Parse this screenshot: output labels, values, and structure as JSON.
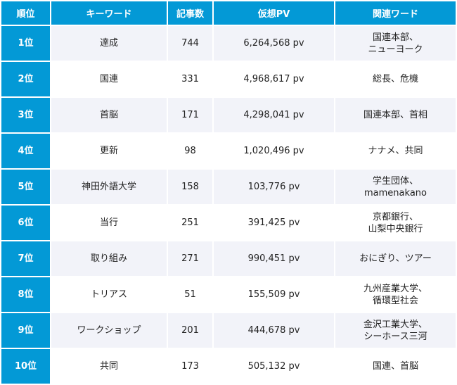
{
  "headers": [
    "順位",
    "キーワード",
    "記事数",
    "仮想PV",
    "関連ワード"
  ],
  "rows": [
    {
      "rank": "1位",
      "keyword": "達成",
      "articles": "744",
      "pv": "6,264,568 pv",
      "related": [
        "国連本部、",
        "ニューヨーク"
      ]
    },
    {
      "rank": "2位",
      "keyword": "国連",
      "articles": "331",
      "pv": "4,968,617 pv",
      "related": [
        "総長、危機"
      ]
    },
    {
      "rank": "3位",
      "keyword": "首脳",
      "articles": "171",
      "pv": "4,298,041 pv",
      "related": [
        "国連本部、首相"
      ]
    },
    {
      "rank": "4位",
      "keyword": "更新",
      "articles": "98",
      "pv": "1,020,496 pv",
      "related": [
        "ナナメ、共同"
      ]
    },
    {
      "rank": "5位",
      "keyword": "神田外語大学",
      "articles": "158",
      "pv": "103,776 pv",
      "related": [
        "学生団体、",
        "mamenakano"
      ]
    },
    {
      "rank": "6位",
      "keyword": "当行",
      "articles": "251",
      "pv": "391,425 pv",
      "related": [
        "京都銀行、",
        "山梨中央銀行"
      ]
    },
    {
      "rank": "7位",
      "keyword": "取り組み",
      "articles": "271",
      "pv": "990,451 pv",
      "related": [
        "おにぎり、ツアー"
      ]
    },
    {
      "rank": "8位",
      "keyword": "トリアス",
      "articles": "51",
      "pv": "155,509 pv",
      "related": [
        "九州産業大学、",
        "循環型社会"
      ]
    },
    {
      "rank": "9位",
      "keyword": "ワークショップ",
      "articles": "201",
      "pv": "444,678 pv",
      "related": [
        "金沢工業大学、",
        "シーホース三河"
      ]
    },
    {
      "rank": "10位",
      "keyword": "共同",
      "articles": "173",
      "pv": "505,132 pv",
      "related": [
        "国連、首脳"
      ]
    }
  ]
}
